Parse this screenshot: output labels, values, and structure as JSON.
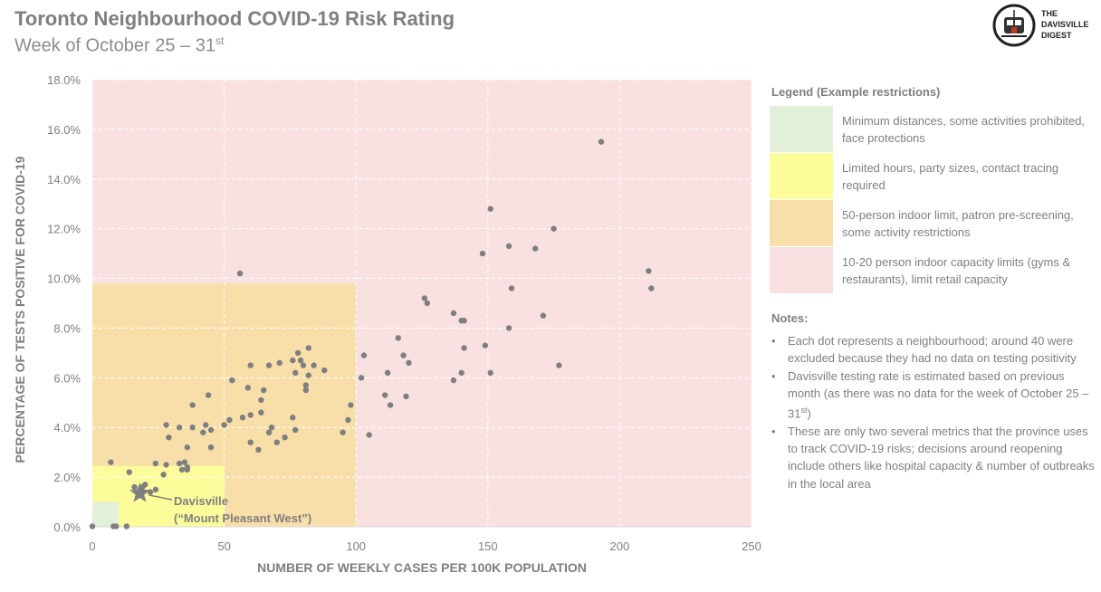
{
  "header": {
    "title": "Toronto Neighbourhood COVID-19 Risk Rating",
    "subtitle": "Week of October 25 – 31",
    "subtitle_sup": "st"
  },
  "logo": {
    "text_line1": "THE",
    "text_line2": "DAVISVILLE",
    "text_line3": "DIGEST",
    "icon": "streetcar-logo-icon"
  },
  "chart_data": {
    "type": "scatter",
    "title": "Toronto Neighbourhood COVID-19 Risk Rating",
    "xlabel": "NUMBER OF WEEKLY CASES PER 100K POPULATION",
    "ylabel": "PERCENTAGE OF TESTS POSITIVE FOR COVID-19",
    "xlim": [
      0,
      250
    ],
    "ylim": [
      0,
      18
    ],
    "xticks": [
      0,
      50,
      100,
      150,
      200,
      250
    ],
    "yticks": [
      0,
      2,
      4,
      6,
      8,
      10,
      12,
      14,
      16,
      18
    ],
    "ytick_labels": [
      "0.0%",
      "2.0%",
      "4.0%",
      "6.0%",
      "8.0%",
      "10.0%",
      "12.0%",
      "14.0%",
      "16.0%",
      "18.0%"
    ],
    "grid": true,
    "zones": [
      {
        "name": "red",
        "x": [
          0,
          250
        ],
        "y": [
          0,
          18
        ],
        "color": "#f9e1e2"
      },
      {
        "name": "orange",
        "x": [
          0,
          100
        ],
        "y": [
          0,
          9.8
        ],
        "color": "#f8dfaa"
      },
      {
        "name": "yellow",
        "x": [
          0,
          50
        ],
        "y": [
          0,
          2.45
        ],
        "color": "#fdfc9b"
      },
      {
        "name": "green",
        "x": [
          0,
          10
        ],
        "y": [
          0,
          1.0
        ],
        "color": "#e2efd9"
      }
    ],
    "points": [
      [
        0,
        0.02
      ],
      [
        8,
        0.02
      ],
      [
        9,
        0.02
      ],
      [
        13,
        0.02
      ],
      [
        7,
        2.6
      ],
      [
        14,
        2.2
      ],
      [
        16,
        1.6
      ],
      [
        19,
        1.6
      ],
      [
        20,
        1.7
      ],
      [
        22,
        1.4
      ],
      [
        24,
        2.55
      ],
      [
        24,
        1.5
      ],
      [
        27,
        2.1
      ],
      [
        28,
        2.5
      ],
      [
        28,
        4.1
      ],
      [
        29,
        3.6
      ],
      [
        33,
        4.0
      ],
      [
        33,
        2.55
      ],
      [
        34,
        2.3
      ],
      [
        35,
        2.6
      ],
      [
        36,
        2.4
      ],
      [
        36,
        2.3
      ],
      [
        36,
        3.2
      ],
      [
        38,
        4.0
      ],
      [
        38,
        4.9
      ],
      [
        42,
        3.8
      ],
      [
        43,
        4.1
      ],
      [
        44,
        5.3
      ],
      [
        45,
        3.9
      ],
      [
        45,
        3.2
      ],
      [
        50,
        4.1
      ],
      [
        52,
        4.3
      ],
      [
        53,
        5.9
      ],
      [
        56,
        10.2
      ],
      [
        57,
        4.4
      ],
      [
        59,
        5.6
      ],
      [
        60,
        3.4
      ],
      [
        60,
        4.5
      ],
      [
        60,
        6.5
      ],
      [
        63,
        3.1
      ],
      [
        64,
        5.1
      ],
      [
        64,
        4.6
      ],
      [
        65,
        5.5
      ],
      [
        67,
        3.8
      ],
      [
        67,
        6.5
      ],
      [
        68,
        4.0
      ],
      [
        70,
        3.4
      ],
      [
        71,
        6.6
      ],
      [
        73,
        3.6
      ],
      [
        76,
        6.7
      ],
      [
        76,
        4.4
      ],
      [
        77,
        3.9
      ],
      [
        77,
        6.2
      ],
      [
        78,
        7.0
      ],
      [
        79,
        6.7
      ],
      [
        80,
        6.5
      ],
      [
        81,
        5.5
      ],
      [
        81,
        5.7
      ],
      [
        82,
        6.1
      ],
      [
        82,
        7.2
      ],
      [
        84,
        6.5
      ],
      [
        88,
        6.3
      ],
      [
        95,
        3.8
      ],
      [
        97,
        4.3
      ],
      [
        98,
        4.9
      ],
      [
        102,
        6.0
      ],
      [
        103,
        6.9
      ],
      [
        105,
        3.7
      ],
      [
        111,
        5.3
      ],
      [
        112,
        6.2
      ],
      [
        113,
        4.9
      ],
      [
        116,
        7.6
      ],
      [
        118,
        6.9
      ],
      [
        119,
        5.25
      ],
      [
        120,
        6.6
      ],
      [
        126,
        9.2
      ],
      [
        127,
        9.0
      ],
      [
        137,
        8.6
      ],
      [
        137,
        5.9
      ],
      [
        140,
        8.3
      ],
      [
        140,
        6.2
      ],
      [
        141,
        8.3
      ],
      [
        141,
        7.2
      ],
      [
        148,
        11.0
      ],
      [
        149,
        7.3
      ],
      [
        151,
        12.8
      ],
      [
        151,
        6.2
      ],
      [
        158,
        11.3
      ],
      [
        158,
        8.0
      ],
      [
        159,
        9.6
      ],
      [
        168,
        11.2
      ],
      [
        171,
        8.5
      ],
      [
        175,
        12.0
      ],
      [
        177,
        6.5
      ],
      [
        193,
        15.5
      ],
      [
        211,
        10.3
      ],
      [
        212,
        9.6
      ]
    ],
    "highlight": {
      "name": "Davisville",
      "sublabel": "(“Mount Pleasant West”)",
      "x": 18,
      "y": 1.35,
      "marker": "star"
    }
  },
  "legend": {
    "title": "Legend (Example restrictions)",
    "items": [
      {
        "color": "#e2efd9",
        "text": "Minimum distances, some activities prohibited, face protections"
      },
      {
        "color": "#fdfc9b",
        "text": "Limited hours, party sizes, contact tracing required"
      },
      {
        "color": "#f8dfaa",
        "text": "50-person indoor limit, patron pre-screening, some activity restrictions"
      },
      {
        "color": "#f9e1e2",
        "text": "10-20 person indoor capacity limits (gyms & restaurants), limit retail capacity"
      }
    ]
  },
  "notes": {
    "title": "Notes:",
    "items": [
      "Each dot represents a neighbourhood; around 40 were excluded because they had no data on testing positivity",
      "Davisville testing rate is estimated based on previous month (as there was no data for the week of October 25 – 31",
      "These are only two several metrics that the province uses to track COVID-19 risks; decisions around reopening include others like hospital capacity & number of outbreaks in the local area"
    ],
    "note2_sup": "st",
    "note2_tail": ")"
  }
}
